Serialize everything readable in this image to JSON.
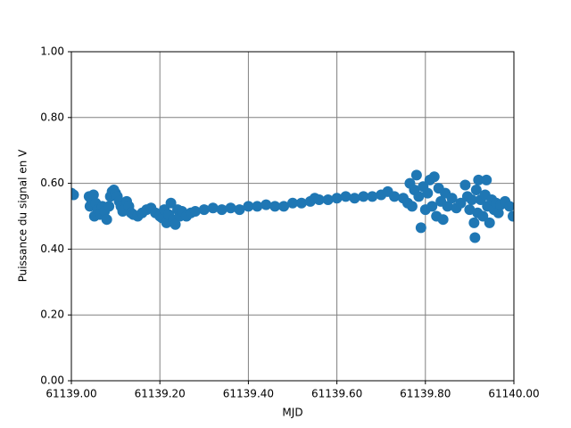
{
  "chart_data": {
    "type": "scatter",
    "xlabel": "MJD",
    "ylabel": "Puissance du signal en V",
    "color": "#1f77b4",
    "grid": true,
    "grid_color": "#808080",
    "xlim": [
      61139,
      61140
    ],
    "xticks": [
      {
        "value": 61139,
        "label": "61139.00"
      },
      {
        "value": 61139.2,
        "label": "61139.20"
      },
      {
        "value": 61139.4,
        "label": "61139.40"
      },
      {
        "value": 61139.6,
        "label": "61139.60"
      },
      {
        "value": 61139.8,
        "label": "61139.80"
      },
      {
        "value": 61140,
        "label": "61140.00"
      }
    ],
    "ylim": [
      0,
      1
    ],
    "yticks": [
      {
        "value": 0,
        "label": "0.00"
      },
      {
        "value": 0.2,
        "label": "0.20"
      },
      {
        "value": 0.4,
        "label": "0.40"
      },
      {
        "value": 0.6,
        "label": "0.60"
      },
      {
        "value": 0.8,
        "label": "0.80"
      },
      {
        "value": 1,
        "label": "1.00"
      }
    ],
    "x": [
      61139.0,
      61139.005,
      61139.04,
      61139.042,
      61139.045,
      61139.05,
      61139.052,
      61139.055,
      61139.06,
      61139.065,
      61139.07,
      61139.075,
      61139.08,
      61139.085,
      61139.088,
      61139.092,
      61139.096,
      61139.1,
      61139.104,
      61139.108,
      61139.112,
      61139.116,
      61139.12,
      61139.125,
      61139.13,
      61139.135,
      61139.14,
      61139.15,
      61139.16,
      61139.17,
      61139.18,
      61139.19,
      61139.2,
      61139.205,
      61139.21,
      61139.215,
      61139.22,
      61139.225,
      61139.23,
      61139.235,
      61139.24,
      61139.245,
      61139.25,
      61139.26,
      61139.27,
      61139.28,
      61139.3,
      61139.32,
      61139.34,
      61139.36,
      61139.38,
      61139.4,
      61139.42,
      61139.44,
      61139.46,
      61139.48,
      61139.5,
      61139.52,
      61139.54,
      61139.55,
      61139.56,
      61139.58,
      61139.6,
      61139.62,
      61139.64,
      61139.66,
      61139.68,
      61139.7,
      61139.715,
      61139.73,
      61139.75,
      61139.76,
      61139.765,
      61139.77,
      61139.775,
      61139.78,
      61139.785,
      61139.79,
      61139.795,
      61139.8,
      61139.805,
      61139.81,
      61139.815,
      61139.82,
      61139.825,
      61139.83,
      61139.835,
      61139.84,
      61139.845,
      61139.85,
      61139.86,
      61139.87,
      61139.88,
      61139.89,
      61139.895,
      61139.9,
      61139.905,
      61139.91,
      61139.912,
      61139.915,
      61139.918,
      61139.92,
      61139.925,
      61139.93,
      61139.935,
      61139.938,
      61139.94,
      61139.945,
      61139.95,
      61139.955,
      61139.96,
      61139.965,
      61139.97,
      61139.98,
      61139.99,
      61139.998
    ],
    "values": [
      0.57,
      0.565,
      0.56,
      0.53,
      0.55,
      0.565,
      0.5,
      0.54,
      0.52,
      0.505,
      0.53,
      0.515,
      0.49,
      0.53,
      0.56,
      0.575,
      0.58,
      0.57,
      0.56,
      0.545,
      0.53,
      0.515,
      0.52,
      0.545,
      0.53,
      0.51,
      0.505,
      0.5,
      0.51,
      0.52,
      0.525,
      0.51,
      0.5,
      0.495,
      0.52,
      0.48,
      0.505,
      0.54,
      0.49,
      0.475,
      0.52,
      0.5,
      0.515,
      0.5,
      0.51,
      0.515,
      0.52,
      0.525,
      0.52,
      0.525,
      0.52,
      0.53,
      0.53,
      0.535,
      0.53,
      0.53,
      0.54,
      0.54,
      0.545,
      0.555,
      0.55,
      0.55,
      0.555,
      0.56,
      0.555,
      0.56,
      0.56,
      0.565,
      0.575,
      0.56,
      0.555,
      0.54,
      0.6,
      0.53,
      0.58,
      0.625,
      0.56,
      0.465,
      0.59,
      0.52,
      0.57,
      0.61,
      0.53,
      0.62,
      0.5,
      0.585,
      0.545,
      0.49,
      0.57,
      0.53,
      0.555,
      0.525,
      0.54,
      0.595,
      0.56,
      0.52,
      0.55,
      0.48,
      0.435,
      0.58,
      0.51,
      0.61,
      0.55,
      0.5,
      0.565,
      0.61,
      0.53,
      0.48,
      0.55,
      0.52,
      0.54,
      0.51,
      0.535,
      0.545,
      0.53,
      0.5
    ]
  }
}
